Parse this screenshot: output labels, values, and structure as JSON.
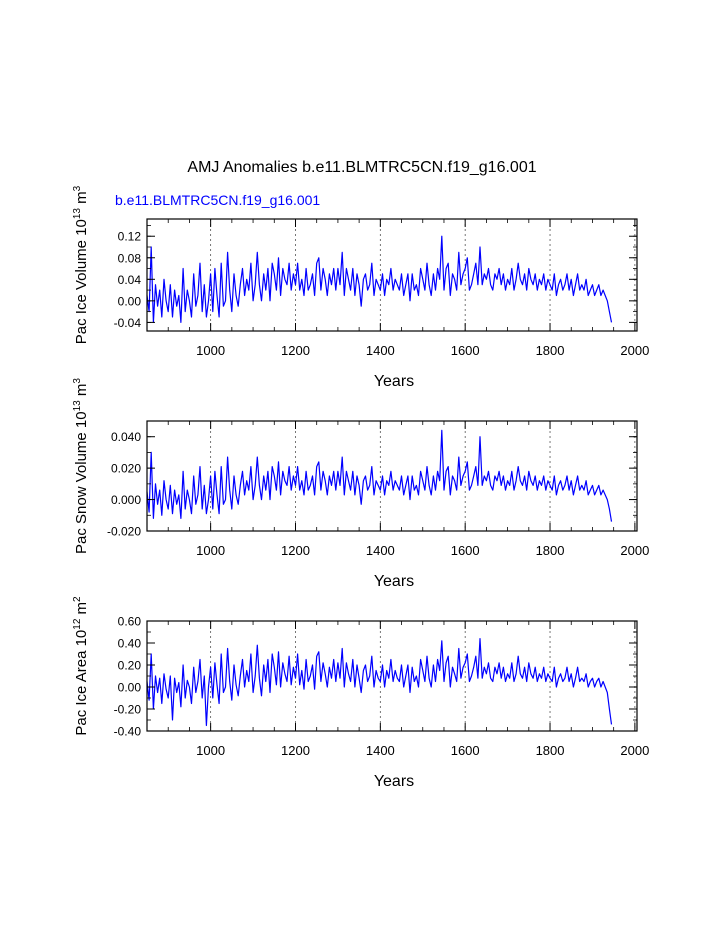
{
  "figure": {
    "title": "AMJ Anomalies b.e11.BLMTRC5CN.f19_g16.001",
    "case_label": "b.e11.BLMTRC5CN.f19_g16.001"
  },
  "colors": {
    "series": "#0000ff",
    "axis": "#000000",
    "grid": "#555555",
    "case_label": "#0000ff"
  },
  "chart_data": [
    {
      "type": "line",
      "name": "pac-ice-volume",
      "title": "",
      "ylabel_main": "Pac Ice Volume 10",
      "ylabel_exp": "13",
      "ylabel_unit": " m",
      "ylabel_unit_exp": "3",
      "xlabel": "Years",
      "xlim": [
        850,
        2005
      ],
      "ylim": [
        -0.056,
        0.152
      ],
      "xticks": [
        1000,
        1200,
        1400,
        1600,
        1800,
        2000
      ],
      "xtick_labels": [
        "1000",
        "1200",
        "1400",
        "1600",
        "1800",
        "2000"
      ],
      "yticks": [
        -0.04,
        0.0,
        0.04,
        0.08,
        0.12
      ],
      "ytick_labels": [
        "-0.04",
        "0.00",
        "0.04",
        "0.08",
        "0.12"
      ],
      "grid": "vertical-dashed",
      "series": [
        {
          "name": "b.e11.BLMTRC5CN.f19_g16.001",
          "x_start": 850,
          "x_step": 5,
          "values": [
            0.01,
            -0.02,
            0.1,
            -0.04,
            0.03,
            -0.01,
            0.02,
            -0.03,
            0.04,
            0.0,
            -0.02,
            0.03,
            -0.03,
            0.02,
            -0.01,
            0.01,
            -0.04,
            0.06,
            -0.02,
            0.02,
            0.0,
            -0.03,
            0.05,
            -0.01,
            0.01,
            0.07,
            -0.02,
            0.03,
            -0.03,
            0.0,
            0.05,
            -0.02,
            0.06,
            0.01,
            -0.03,
            0.07,
            -0.01,
            0.0,
            0.09,
            0.02,
            -0.02,
            0.05,
            0.01,
            -0.01,
            0.03,
            0.06,
            0.01,
            0.04,
            0.02,
            0.07,
            0.0,
            0.03,
            0.09,
            0.03,
            0.0,
            0.05,
            0.02,
            0.06,
            0.0,
            0.07,
            0.05,
            0.02,
            0.08,
            0.01,
            0.06,
            0.04,
            0.03,
            0.07,
            0.02,
            0.05,
            0.03,
            0.07,
            0.02,
            0.04,
            0.01,
            0.06,
            0.02,
            0.03,
            0.05,
            0.01,
            0.07,
            0.08,
            0.02,
            0.06,
            0.04,
            0.01,
            0.05,
            0.03,
            0.06,
            0.02,
            0.06,
            0.03,
            0.09,
            0.01,
            0.06,
            0.04,
            0.02,
            0.06,
            0.01,
            0.05,
            0.03,
            -0.01,
            0.04,
            0.05,
            0.02,
            0.03,
            0.07,
            0.01,
            0.04,
            0.03,
            0.02,
            0.05,
            0.01,
            0.04,
            0.03,
            0.06,
            0.02,
            0.04,
            0.03,
            0.02,
            0.05,
            0.01,
            0.03,
            0.05,
            0.0,
            0.05,
            0.02,
            0.03,
            0.01,
            0.06,
            0.04,
            0.02,
            0.07,
            0.03,
            0.01,
            0.05,
            0.02,
            0.06,
            0.04,
            0.12,
            0.02,
            0.06,
            0.07,
            0.01,
            0.05,
            0.04,
            0.02,
            0.09,
            0.03,
            0.05,
            0.06,
            0.08,
            0.02,
            0.03,
            0.05,
            0.07,
            0.03,
            0.1,
            0.03,
            0.05,
            0.04,
            0.06,
            0.03,
            0.02,
            0.05,
            0.04,
            0.06,
            0.03,
            0.05,
            0.02,
            0.04,
            0.03,
            0.06,
            0.02,
            0.04,
            0.07,
            0.04,
            0.03,
            0.05,
            0.02,
            0.06,
            0.04,
            0.03,
            0.05,
            0.02,
            0.04,
            0.03,
            0.05,
            0.02,
            0.04,
            0.03,
            0.02,
            0.05,
            0.01,
            0.03,
            0.04,
            0.02,
            0.03,
            0.05,
            0.02,
            0.04,
            0.01,
            0.03,
            0.05,
            0.02,
            0.03,
            0.02,
            0.04,
            0.01,
            0.02,
            0.03,
            0.01,
            0.02,
            0.03,
            0.01,
            0.02,
            0.01,
            0.0,
            -0.02,
            -0.04
          ]
        }
      ]
    },
    {
      "type": "line",
      "name": "pac-snow-volume",
      "title": "",
      "ylabel_main": "Pac Snow Volume 10",
      "ylabel_exp": "13",
      "ylabel_unit": " m",
      "ylabel_unit_exp": "3",
      "xlabel": "Years",
      "xlim": [
        850,
        2005
      ],
      "ylim": [
        -0.02,
        0.05
      ],
      "xticks": [
        1000,
        1200,
        1400,
        1600,
        1800,
        2000
      ],
      "xtick_labels": [
        "1000",
        "1200",
        "1400",
        "1600",
        "1800",
        "2000"
      ],
      "yticks": [
        -0.02,
        0.0,
        0.02,
        0.04
      ],
      "ytick_labels": [
        "-0.020",
        "0.000",
        "0.020",
        "0.040"
      ],
      "grid": "vertical-dashed",
      "series": [
        {
          "name": "b.e11.BLMTRC5CN.f19_g16.001",
          "x_start": 850,
          "x_step": 5,
          "values": [
            0.005,
            -0.008,
            0.03,
            -0.012,
            0.01,
            -0.003,
            0.006,
            -0.01,
            0.012,
            0.0,
            -0.006,
            0.009,
            -0.009,
            0.006,
            -0.003,
            0.003,
            -0.012,
            0.018,
            -0.006,
            0.006,
            0.0,
            -0.009,
            0.015,
            -0.003,
            0.003,
            0.021,
            -0.006,
            0.009,
            -0.009,
            0.0,
            0.015,
            -0.006,
            0.018,
            0.003,
            -0.009,
            0.021,
            -0.003,
            0.0,
            0.027,
            0.006,
            -0.006,
            0.015,
            0.003,
            -0.003,
            0.009,
            0.018,
            0.003,
            0.012,
            0.006,
            0.021,
            0.0,
            0.009,
            0.027,
            0.009,
            0.0,
            0.015,
            0.006,
            0.018,
            0.0,
            0.021,
            0.015,
            0.006,
            0.024,
            0.003,
            0.018,
            0.012,
            0.009,
            0.021,
            0.006,
            0.015,
            0.009,
            0.021,
            0.006,
            0.012,
            0.003,
            0.018,
            0.006,
            0.009,
            0.015,
            0.003,
            0.021,
            0.024,
            0.006,
            0.018,
            0.012,
            0.003,
            0.015,
            0.009,
            0.018,
            0.006,
            0.018,
            0.009,
            0.027,
            0.003,
            0.018,
            0.012,
            0.006,
            0.018,
            0.003,
            0.015,
            0.009,
            -0.003,
            0.012,
            0.015,
            0.006,
            0.009,
            0.021,
            0.003,
            0.012,
            0.009,
            0.006,
            0.015,
            0.003,
            0.012,
            0.009,
            0.018,
            0.006,
            0.012,
            0.009,
            0.006,
            0.015,
            0.003,
            0.009,
            0.015,
            0.0,
            0.015,
            0.006,
            0.009,
            0.003,
            0.018,
            0.012,
            0.006,
            0.021,
            0.009,
            0.003,
            0.015,
            0.006,
            0.018,
            0.012,
            0.044,
            0.006,
            0.018,
            0.021,
            0.003,
            0.015,
            0.012,
            0.006,
            0.027,
            0.009,
            0.015,
            0.018,
            0.024,
            0.006,
            0.009,
            0.015,
            0.021,
            0.009,
            0.04,
            0.009,
            0.015,
            0.012,
            0.018,
            0.009,
            0.006,
            0.015,
            0.012,
            0.018,
            0.009,
            0.015,
            0.006,
            0.012,
            0.009,
            0.018,
            0.006,
            0.012,
            0.021,
            0.012,
            0.009,
            0.015,
            0.006,
            0.018,
            0.012,
            0.009,
            0.015,
            0.006,
            0.012,
            0.009,
            0.015,
            0.006,
            0.012,
            0.009,
            0.006,
            0.015,
            0.003,
            0.009,
            0.012,
            0.006,
            0.009,
            0.015,
            0.006,
            0.012,
            0.003,
            0.009,
            0.015,
            0.006,
            0.009,
            0.006,
            0.012,
            0.003,
            0.006,
            0.009,
            0.003,
            0.006,
            0.009,
            0.003,
            0.006,
            0.003,
            0.0,
            -0.006,
            -0.014
          ]
        }
      ]
    },
    {
      "type": "line",
      "name": "pac-ice-area",
      "title": "",
      "ylabel_main": "Pac Ice Area 10",
      "ylabel_exp": "12",
      "ylabel_unit": " m",
      "ylabel_unit_exp": "2",
      "xlabel": "Years",
      "xlim": [
        850,
        2005
      ],
      "ylim": [
        -0.4,
        0.6
      ],
      "xticks": [
        1000,
        1200,
        1400,
        1600,
        1800,
        2000
      ],
      "xtick_labels": [
        "1000",
        "1200",
        "1400",
        "1600",
        "1800",
        "2000"
      ],
      "yticks": [
        -0.4,
        -0.2,
        0.0,
        0.2,
        0.4,
        0.6
      ],
      "ytick_labels": [
        "-0.40",
        "-0.20",
        "0.00",
        "0.20",
        "0.40",
        "0.60"
      ],
      "grid": "vertical-dashed",
      "series": [
        {
          "name": "b.e11.BLMTRC5CN.f19_g16.001",
          "x_start": 850,
          "x_step": 5,
          "values": [
            0.05,
            -0.12,
            0.3,
            -0.2,
            0.1,
            -0.05,
            0.08,
            -0.15,
            0.12,
            -0.02,
            -0.1,
            0.1,
            -0.3,
            0.08,
            -0.05,
            0.04,
            -0.18,
            0.2,
            -0.1,
            0.06,
            0.0,
            -0.15,
            0.18,
            -0.05,
            0.05,
            0.25,
            -0.1,
            0.1,
            -0.35,
            0.0,
            0.18,
            -0.1,
            0.22,
            0.02,
            -0.15,
            0.3,
            -0.05,
            0.0,
            0.35,
            0.05,
            -0.12,
            0.2,
            0.02,
            -0.08,
            0.1,
            0.25,
            0.0,
            0.15,
            0.05,
            0.3,
            -0.05,
            0.1,
            0.38,
            0.08,
            -0.08,
            0.2,
            0.05,
            0.25,
            -0.05,
            0.3,
            0.18,
            0.02,
            0.32,
            0.0,
            0.22,
            0.12,
            0.05,
            0.28,
            0.02,
            0.18,
            0.08,
            0.3,
            0.02,
            0.15,
            -0.02,
            0.25,
            0.05,
            0.1,
            0.2,
            -0.02,
            0.28,
            0.32,
            0.05,
            0.22,
            0.12,
            0.0,
            0.18,
            0.08,
            0.25,
            0.05,
            0.22,
            0.08,
            0.35,
            0.0,
            0.22,
            0.12,
            0.05,
            0.25,
            0.0,
            0.2,
            0.08,
            -0.05,
            0.15,
            0.2,
            0.05,
            0.1,
            0.28,
            0.0,
            0.15,
            0.08,
            0.05,
            0.2,
            0.0,
            0.15,
            0.08,
            0.25,
            0.05,
            0.15,
            0.08,
            0.05,
            0.2,
            0.0,
            0.1,
            0.2,
            -0.05,
            0.18,
            0.05,
            0.1,
            0.0,
            0.25,
            0.15,
            0.05,
            0.28,
            0.08,
            0.0,
            0.2,
            0.05,
            0.25,
            0.15,
            0.42,
            0.05,
            0.22,
            0.28,
            0.0,
            0.18,
            0.12,
            0.05,
            0.35,
            0.08,
            0.18,
            0.22,
            0.3,
            0.05,
            0.1,
            0.18,
            0.28,
            0.08,
            0.44,
            0.08,
            0.18,
            0.12,
            0.22,
            0.08,
            0.05,
            0.18,
            0.12,
            0.22,
            0.08,
            0.18,
            0.05,
            0.12,
            0.08,
            0.22,
            0.05,
            0.12,
            0.28,
            0.12,
            0.08,
            0.18,
            0.05,
            0.22,
            0.12,
            0.08,
            0.18,
            0.05,
            0.12,
            0.08,
            0.18,
            0.05,
            0.12,
            0.08,
            0.05,
            0.18,
            0.0,
            0.08,
            0.12,
            0.05,
            0.08,
            0.18,
            0.05,
            0.12,
            0.0,
            0.08,
            0.18,
            0.05,
            0.08,
            0.05,
            0.12,
            0.0,
            0.05,
            0.08,
            0.0,
            0.05,
            0.08,
            0.0,
            0.05,
            0.0,
            -0.05,
            -0.2,
            -0.34
          ]
        }
      ]
    }
  ]
}
